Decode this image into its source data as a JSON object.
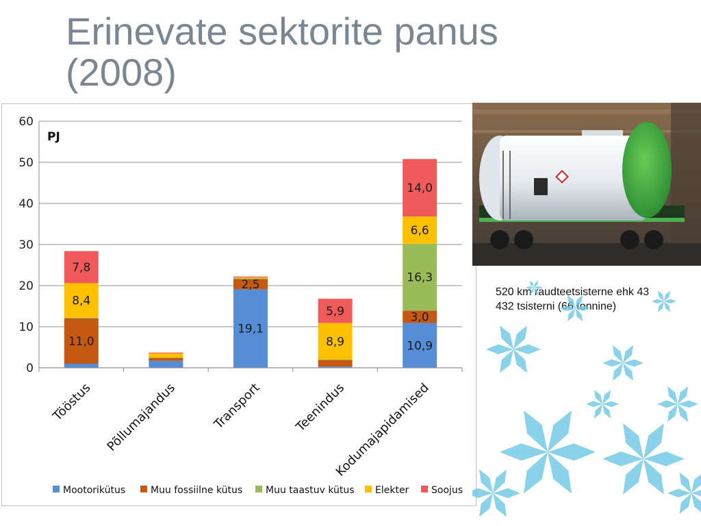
{
  "slide": {
    "title": "Erinevate sektorite panus (2008)",
    "caption": "520 km raudteetsisterne ehk 43 432 tsisterni (66 tonnine)"
  },
  "photo": {
    "subject": "railway tank car",
    "colors": {
      "tank": "#e8ecef",
      "tank_end": "#3fae49",
      "frame": "#1e3a1e",
      "hall": "#5a4a3a"
    }
  },
  "decor": {
    "icon": "snowflake-icon",
    "color": "#6ec8e6"
  },
  "chart_data": {
    "type": "bar",
    "stacked": true,
    "unit_label": "PJ",
    "ylim": [
      0,
      60
    ],
    "yticks": [
      0,
      10,
      20,
      30,
      40,
      50,
      60
    ],
    "grid": true,
    "legend_position": "bottom",
    "categories": [
      "Tööstus",
      "Põllumajandus",
      "Transport",
      "Teenindus",
      "Kodumajapidamised"
    ],
    "series": [
      {
        "name": "Mootorikütus",
        "color": "#558ed5",
        "values": [
          1.0,
          1.7,
          19.1,
          0.3,
          10.9
        ],
        "labels": [
          "",
          "",
          "19,1",
          "",
          "10,9"
        ]
      },
      {
        "name": "Muu fossiilne kütus",
        "color": "#c65911",
        "values": [
          11.0,
          0.7,
          2.5,
          1.6,
          3.0
        ],
        "labels": [
          "11,0",
          "",
          "2,5",
          "",
          "3,0"
        ]
      },
      {
        "name": "Muu taastuv kütus",
        "color": "#9bbb59",
        "values": [
          0.2,
          0.1,
          0.2,
          0.1,
          16.3
        ],
        "labels": [
          "",
          "",
          "",
          "",
          "16,3"
        ]
      },
      {
        "name": "Elekter",
        "color": "#ffc000",
        "values": [
          8.4,
          1.0,
          0.2,
          8.9,
          6.6
        ],
        "labels": [
          "8,4",
          "",
          "",
          "8,9",
          "6,6"
        ]
      },
      {
        "name": "Soojus",
        "color": "#f15a5a",
        "values": [
          7.8,
          0.2,
          0.2,
          5.9,
          14.0
        ],
        "labels": [
          "7,8",
          "",
          "",
          "5,9",
          "14,0"
        ]
      }
    ]
  }
}
